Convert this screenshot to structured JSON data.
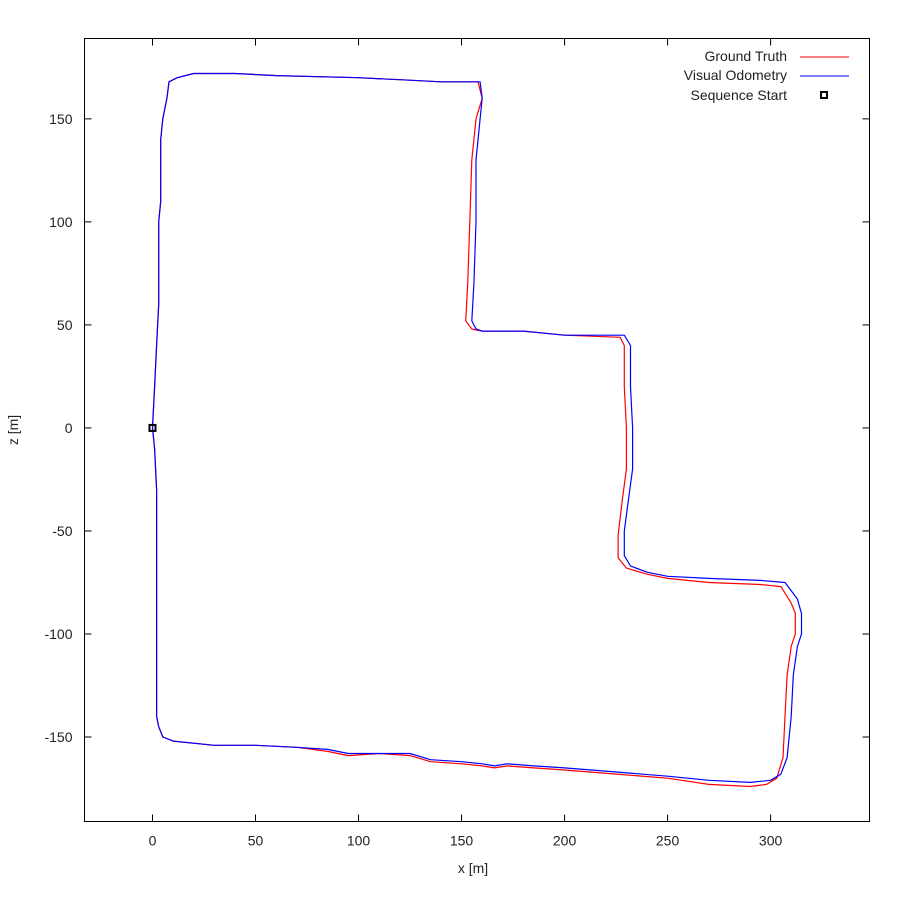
{
  "chart_data": {
    "type": "line",
    "title": "",
    "xlabel": "x [m]",
    "ylabel": "z [m]",
    "xlim": [
      -33,
      348
    ],
    "ylim": [
      -191,
      189
    ],
    "xticks": [
      0,
      50,
      100,
      150,
      200,
      250,
      300
    ],
    "yticks": [
      -150,
      -100,
      -50,
      0,
      50,
      100,
      150
    ],
    "xtick_labels": [
      "0",
      "50",
      "100",
      "150",
      "200",
      "250",
      "300"
    ],
    "ytick_labels": [
      "-150",
      "-100",
      "-50",
      "0",
      "50",
      "100",
      "150"
    ],
    "grid": false,
    "legend_position": "top-right",
    "series": [
      {
        "name": "Ground Truth",
        "color": "#ff0000",
        "points": [
          [
            0,
            0
          ],
          [
            1,
            -10
          ],
          [
            2,
            -30
          ],
          [
            2,
            -60
          ],
          [
            2,
            -100
          ],
          [
            2,
            -140
          ],
          [
            3,
            -145
          ],
          [
            5,
            -150
          ],
          [
            10,
            -152
          ],
          [
            30,
            -154
          ],
          [
            50,
            -154
          ],
          [
            70,
            -155
          ],
          [
            85,
            -157
          ],
          [
            95,
            -159
          ],
          [
            110,
            -158
          ],
          [
            125,
            -159
          ],
          [
            135,
            -162
          ],
          [
            150,
            -163
          ],
          [
            160,
            -164
          ],
          [
            166,
            -165
          ],
          [
            172,
            -164
          ],
          [
            185,
            -165
          ],
          [
            200,
            -166
          ],
          [
            225,
            -168
          ],
          [
            250,
            -170
          ],
          [
            270,
            -173
          ],
          [
            290,
            -174
          ],
          [
            298,
            -173
          ],
          [
            303,
            -170
          ],
          [
            306,
            -160
          ],
          [
            307,
            -140
          ],
          [
            308,
            -120
          ],
          [
            310,
            -106
          ],
          [
            312,
            -100
          ],
          [
            312,
            -90
          ],
          [
            310,
            -85
          ],
          [
            305,
            -77
          ],
          [
            295,
            -76
          ],
          [
            270,
            -75
          ],
          [
            250,
            -73
          ],
          [
            240,
            -71
          ],
          [
            230,
            -68
          ],
          [
            226,
            -63
          ],
          [
            226,
            -52
          ],
          [
            228,
            -35
          ],
          [
            230,
            -20
          ],
          [
            230,
            0
          ],
          [
            229,
            20
          ],
          [
            229,
            40
          ],
          [
            227,
            44
          ],
          [
            200,
            45
          ],
          [
            180,
            47
          ],
          [
            160,
            47
          ],
          [
            155,
            48
          ],
          [
            152,
            52
          ],
          [
            153,
            70
          ],
          [
            154,
            100
          ],
          [
            155,
            130
          ],
          [
            157,
            150
          ],
          [
            160,
            160
          ],
          [
            158,
            168
          ],
          [
            140,
            168
          ],
          [
            120,
            169
          ],
          [
            100,
            170
          ],
          [
            60,
            171
          ],
          [
            40,
            172
          ],
          [
            20,
            172
          ],
          [
            12,
            170
          ],
          [
            8,
            168
          ],
          [
            7,
            160
          ],
          [
            5,
            150
          ],
          [
            4,
            140
          ],
          [
            4,
            120
          ],
          [
            4,
            110
          ],
          [
            3,
            100
          ],
          [
            3,
            80
          ],
          [
            3,
            60
          ],
          [
            2,
            40
          ],
          [
            1,
            20
          ],
          [
            0,
            0
          ]
        ]
      },
      {
        "name": "Visual Odometry",
        "color": "#0000ff",
        "points": [
          [
            0,
            0
          ],
          [
            1,
            -10
          ],
          [
            2,
            -30
          ],
          [
            2,
            -60
          ],
          [
            2,
            -100
          ],
          [
            2,
            -140
          ],
          [
            3,
            -145
          ],
          [
            5,
            -150
          ],
          [
            10,
            -152
          ],
          [
            30,
            -154
          ],
          [
            50,
            -154
          ],
          [
            70,
            -155
          ],
          [
            85,
            -156
          ],
          [
            95,
            -158
          ],
          [
            110,
            -158
          ],
          [
            125,
            -158
          ],
          [
            135,
            -161
          ],
          [
            150,
            -162
          ],
          [
            160,
            -163
          ],
          [
            166,
            -164
          ],
          [
            172,
            -163
          ],
          [
            185,
            -164
          ],
          [
            200,
            -165
          ],
          [
            225,
            -167
          ],
          [
            250,
            -169
          ],
          [
            270,
            -171
          ],
          [
            290,
            -172
          ],
          [
            300,
            -171
          ],
          [
            305,
            -168
          ],
          [
            308,
            -160
          ],
          [
            310,
            -140
          ],
          [
            311,
            -120
          ],
          [
            313,
            -106
          ],
          [
            315,
            -100
          ],
          [
            315,
            -90
          ],
          [
            313,
            -83
          ],
          [
            307,
            -75
          ],
          [
            295,
            -74
          ],
          [
            270,
            -73
          ],
          [
            250,
            -72
          ],
          [
            240,
            -70
          ],
          [
            232,
            -67
          ],
          [
            229,
            -62
          ],
          [
            229,
            -50
          ],
          [
            231,
            -35
          ],
          [
            233,
            -20
          ],
          [
            233,
            0
          ],
          [
            232,
            20
          ],
          [
            232,
            40
          ],
          [
            229,
            45
          ],
          [
            200,
            45
          ],
          [
            180,
            47
          ],
          [
            160,
            47
          ],
          [
            157,
            48
          ],
          [
            155,
            52
          ],
          [
            156,
            70
          ],
          [
            157,
            100
          ],
          [
            157,
            130
          ],
          [
            159,
            150
          ],
          [
            160,
            160
          ],
          [
            159,
            168
          ],
          [
            140,
            168
          ],
          [
            120,
            169
          ],
          [
            100,
            170
          ],
          [
            60,
            171
          ],
          [
            40,
            172
          ],
          [
            20,
            172
          ],
          [
            12,
            170
          ],
          [
            8,
            168
          ],
          [
            7,
            160
          ],
          [
            5,
            150
          ],
          [
            4,
            140
          ],
          [
            4,
            120
          ],
          [
            4,
            110
          ],
          [
            3,
            100
          ],
          [
            3,
            80
          ],
          [
            3,
            60
          ],
          [
            2,
            40
          ],
          [
            1,
            20
          ],
          [
            0,
            0
          ]
        ]
      }
    ],
    "markers": [
      {
        "name": "Sequence Start",
        "x": 0,
        "y": 0,
        "shape": "square",
        "color": "#000000"
      }
    ]
  }
}
